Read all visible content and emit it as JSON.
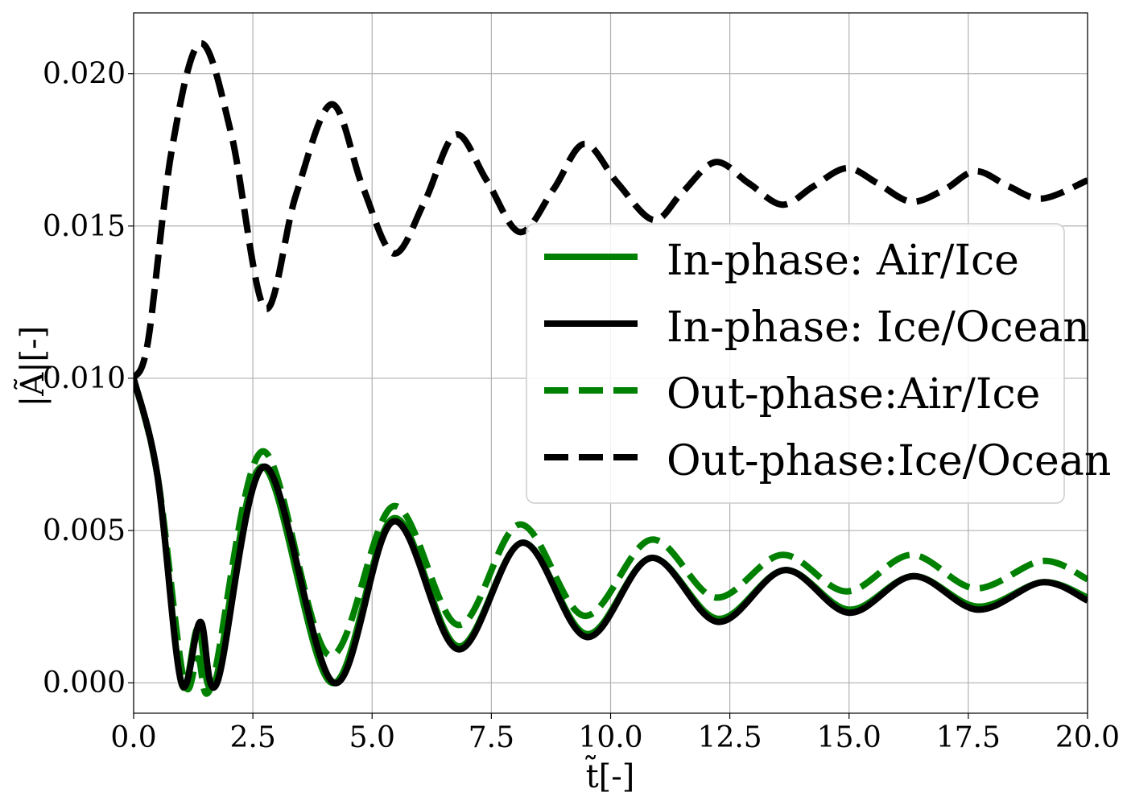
{
  "chart_data": {
    "type": "line",
    "xlabel": "t̃[-]",
    "ylabel": "|Ã|[-]",
    "xlim": [
      0,
      20
    ],
    "ylim": [
      -0.001,
      0.022
    ],
    "xticks": [
      "0.0",
      "2.5",
      "5.0",
      "7.5",
      "10.0",
      "12.5",
      "15.0",
      "17.5",
      "20.0"
    ],
    "yticks": [
      "0.000",
      "0.005",
      "0.010",
      "0.015",
      "0.020"
    ],
    "grid": true,
    "legend_position": "center-right",
    "series": [
      {
        "name": "In-phase:  Air/Ice",
        "color": "#008000",
        "dash": "solid",
        "x": [
          0.0,
          0.5,
          1.0,
          1.35,
          1.7,
          2.7,
          4.15,
          5.45,
          6.8,
          8.15,
          9.5,
          10.85,
          12.25,
          13.65,
          15.0,
          16.35,
          17.7,
          19.05,
          20.0
        ],
        "y": [
          0.01,
          0.0068,
          0.0,
          0.0018,
          0.0,
          0.0071,
          0.0,
          0.0054,
          0.0012,
          0.0046,
          0.0016,
          0.0041,
          0.0021,
          0.0037,
          0.0024,
          0.0035,
          0.0025,
          0.0033,
          0.0028
        ]
      },
      {
        "name": "In-phase:  Ice/Ocean",
        "color": "#000000",
        "dash": "solid",
        "x": [
          0.0,
          0.5,
          1.0,
          1.4,
          1.75,
          2.75,
          4.2,
          5.45,
          6.8,
          8.15,
          9.5,
          10.85,
          12.25,
          13.65,
          15.0,
          16.35,
          17.7,
          19.05,
          20.0
        ],
        "y": [
          0.01,
          0.0068,
          0.0,
          0.002,
          0.0,
          0.0071,
          0.0,
          0.0053,
          0.0011,
          0.0046,
          0.0015,
          0.0041,
          0.002,
          0.0037,
          0.0023,
          0.0035,
          0.0024,
          0.0033,
          0.0027
        ]
      },
      {
        "name": "Out-phase:Air/Ice",
        "color": "#008000",
        "dash": "dashed",
        "x": [
          0.0,
          0.5,
          1.05,
          1.35,
          1.65,
          2.7,
          4.1,
          5.45,
          6.8,
          8.1,
          9.45,
          10.85,
          12.2,
          13.6,
          14.95,
          16.3,
          17.65,
          19.05,
          20.0
        ],
        "y": [
          0.01,
          0.0068,
          0.0001,
          0.0008,
          0.0,
          0.0076,
          0.0009,
          0.0058,
          0.0019,
          0.0052,
          0.0022,
          0.0047,
          0.0028,
          0.0042,
          0.003,
          0.0042,
          0.0031,
          0.004,
          0.0034
        ]
      },
      {
        "name": "Out-phase:Ice/Ocean",
        "color": "#000000",
        "dash": "dashed",
        "x": [
          0.0,
          0.3,
          0.8,
          1.4,
          2.05,
          2.75,
          3.4,
          4.15,
          4.8,
          5.45,
          6.1,
          6.75,
          7.4,
          8.1,
          8.8,
          9.45,
          10.15,
          10.9,
          11.5,
          12.2,
          12.9,
          13.6,
          14.25,
          14.95,
          15.6,
          16.3,
          17.0,
          17.65,
          18.35,
          19.05,
          20.0
        ],
        "y": [
          0.01,
          0.0112,
          0.0175,
          0.021,
          0.018,
          0.0123,
          0.016,
          0.019,
          0.0163,
          0.0141,
          0.0158,
          0.018,
          0.0165,
          0.0148,
          0.0162,
          0.0177,
          0.0164,
          0.0152,
          0.0161,
          0.0171,
          0.0164,
          0.0157,
          0.0163,
          0.0169,
          0.0164,
          0.0158,
          0.0162,
          0.0168,
          0.0163,
          0.0159,
          0.0165
        ]
      }
    ]
  }
}
